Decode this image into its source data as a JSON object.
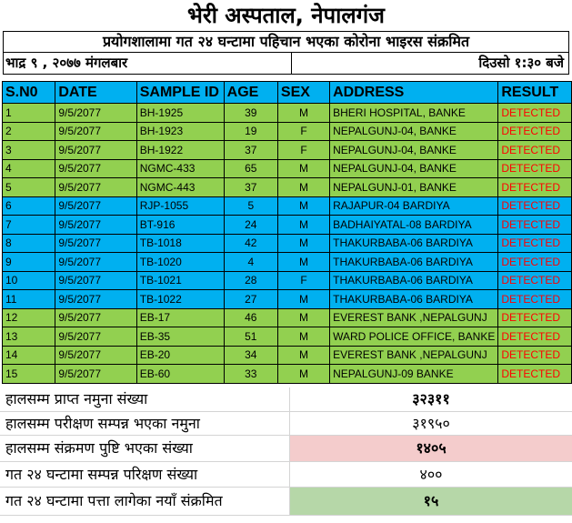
{
  "title": "भेरी अस्पताल, नेपालगंज",
  "subtitle": "प्रयोगशालामा गत २४ घन्टामा पहिचान भएका कोरोना भाइरस संक्रमित",
  "date_text": "भाद्र ९   , २०७७  मंगलबार",
  "time_text": "दिउसो १:३०   बजे",
  "colors": {
    "green": "#92d050",
    "blue": "#00b0f0",
    "detected": "#ff0000",
    "pink": "#f4cccc",
    "light_green": "#b6d7a8"
  },
  "columns": [
    "S.N0",
    "DATE",
    "SAMPLE ID",
    "AGE",
    "SEX",
    "ADDRESS",
    "RESULT"
  ],
  "rows": [
    {
      "sn": "1",
      "date": "9/5/2077",
      "id": "BH-1925",
      "age": "39",
      "sex": "M",
      "address": "BHERI HOSPITAL, BANKE",
      "result": "DETECTED",
      "color": "green"
    },
    {
      "sn": "2",
      "date": "9/5/2077",
      "id": "BH-1923",
      "age": "19",
      "sex": "F",
      "address": "NEPALGUNJ-04, BANKE",
      "result": "DETECTED",
      "color": "green"
    },
    {
      "sn": "3",
      "date": "9/5/2077",
      "id": "BH-1922",
      "age": "37",
      "sex": "F",
      "address": "NEPALGUNJ-04, BANKE",
      "result": "DETECTED",
      "color": "green"
    },
    {
      "sn": "4",
      "date": "9/5/2077",
      "id": "NGMC-433",
      "age": "65",
      "sex": "M",
      "address": "NEPALGUNJ-04, BANKE",
      "result": "DETECTED",
      "color": "green"
    },
    {
      "sn": "5",
      "date": "9/5/2077",
      "id": "NGMC-443",
      "age": "37",
      "sex": "M",
      "address": "NEPALGUNJ-01, BANKE",
      "result": "DETECTED",
      "color": "green"
    },
    {
      "sn": "6",
      "date": "9/5/2077",
      "id": "RJP-1055",
      "age": "5",
      "sex": "M",
      "address": "RAJAPUR-04 BARDIYA",
      "result": "DETECTED",
      "color": "blue"
    },
    {
      "sn": "7",
      "date": "9/5/2077",
      "id": "BT-916",
      "age": "24",
      "sex": "M",
      "address": "BADHAIYATAL-08 BARDIYA",
      "result": "DETECTED",
      "color": "blue"
    },
    {
      "sn": "8",
      "date": "9/5/2077",
      "id": "TB-1018",
      "age": "42",
      "sex": "M",
      "address": "THAKURBABA-06 BARDIYA",
      "result": "DETECTED",
      "color": "blue"
    },
    {
      "sn": "9",
      "date": "9/5/2077",
      "id": "TB-1020",
      "age": "4",
      "sex": "M",
      "address": "THAKURBABA-06 BARDIYA",
      "result": "DETECTED",
      "color": "blue"
    },
    {
      "sn": "10",
      "date": "9/5/2077",
      "id": "TB-1021",
      "age": "28",
      "sex": "F",
      "address": "THAKURBABA-06 BARDIYA",
      "result": "DETECTED",
      "color": "blue"
    },
    {
      "sn": "11",
      "date": "9/5/2077",
      "id": "TB-1022",
      "age": "27",
      "sex": "M",
      "address": "THAKURBABA-06 BARDIYA",
      "result": "DETECTED",
      "color": "blue"
    },
    {
      "sn": "12",
      "date": "9/5/2077",
      "id": "EB-17",
      "age": "46",
      "sex": "M",
      "address": "EVEREST BANK ,NEPALGUNJ",
      "result": "DETECTED",
      "color": "green"
    },
    {
      "sn": "13",
      "date": "9/5/2077",
      "id": "EB-35",
      "age": "51",
      "sex": "M",
      "address": "WARD POLICE OFFICE, BANKE",
      "result": "DETECTED",
      "color": "green"
    },
    {
      "sn": "14",
      "date": "9/5/2077",
      "id": "EB-20",
      "age": "34",
      "sex": "M",
      "address": "EVEREST BANK ,NEPALGUNJ",
      "result": "DETECTED",
      "color": "green"
    },
    {
      "sn": "15",
      "date": "9/5/2077",
      "id": "EB-60",
      "age": "33",
      "sex": "M",
      "address": "NEPALGUNJ-09 BANKE",
      "result": "DETECTED",
      "color": "green"
    }
  ],
  "summary": [
    {
      "label": "हालसम्म प्राप्त नमुना संख्या",
      "value": "३२३११",
      "bold": true,
      "bg": ""
    },
    {
      "label": "हालसम्म परीक्षण सम्पन्न भएका नमुना",
      "value": "३१९५०",
      "bold": false,
      "bg": ""
    },
    {
      "label": "हालसम्म संक्रमण पुष्टि भएका संख्या",
      "value": "१४०५",
      "bold": true,
      "bg": "pink"
    },
    {
      "label": "गत २४ घन्टामा सम्पन्न परिक्षण संख्या",
      "value": "४००",
      "bold": false,
      "bg": ""
    },
    {
      "label": "गत २४ घन्टामा पत्ता लागेका नयाँ संक्रमित",
      "value": "१५",
      "bold": true,
      "bg": "light_green"
    }
  ]
}
